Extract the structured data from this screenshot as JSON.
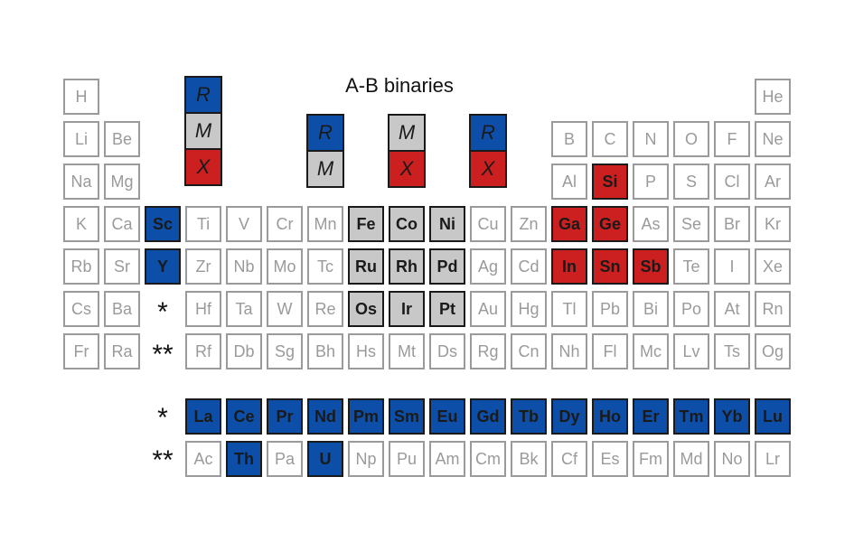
{
  "title": "A-B binaries",
  "colors": {
    "R": "#0d4fa8",
    "M": "#c8c8c8",
    "X": "#cc1f1f",
    "plain": "#9a9a9a"
  },
  "markers": {
    "lanthanide": "*",
    "actinide": "**"
  },
  "key_groups": [
    [
      "R",
      "M",
      "X"
    ],
    [
      "R",
      "M"
    ],
    [
      "M",
      "X"
    ],
    [
      "R",
      "X"
    ]
  ],
  "elements": [
    {
      "symbol": "H",
      "row": 1,
      "col": 1,
      "role": "plain"
    },
    {
      "symbol": "He",
      "row": 1,
      "col": 18,
      "role": "plain"
    },
    {
      "symbol": "Li",
      "row": 2,
      "col": 1,
      "role": "plain"
    },
    {
      "symbol": "Be",
      "row": 2,
      "col": 2,
      "role": "plain"
    },
    {
      "symbol": "B",
      "row": 2,
      "col": 13,
      "role": "plain"
    },
    {
      "symbol": "C",
      "row": 2,
      "col": 14,
      "role": "plain"
    },
    {
      "symbol": "N",
      "row": 2,
      "col": 15,
      "role": "plain"
    },
    {
      "symbol": "O",
      "row": 2,
      "col": 16,
      "role": "plain"
    },
    {
      "symbol": "F",
      "row": 2,
      "col": 17,
      "role": "plain"
    },
    {
      "symbol": "Ne",
      "row": 2,
      "col": 18,
      "role": "plain"
    },
    {
      "symbol": "Na",
      "row": 3,
      "col": 1,
      "role": "plain"
    },
    {
      "symbol": "Mg",
      "row": 3,
      "col": 2,
      "role": "plain"
    },
    {
      "symbol": "Al",
      "row": 3,
      "col": 13,
      "role": "plain"
    },
    {
      "symbol": "Si",
      "row": 3,
      "col": 14,
      "role": "X"
    },
    {
      "symbol": "P",
      "row": 3,
      "col": 15,
      "role": "plain"
    },
    {
      "symbol": "S",
      "row": 3,
      "col": 16,
      "role": "plain"
    },
    {
      "symbol": "Cl",
      "row": 3,
      "col": 17,
      "role": "plain"
    },
    {
      "symbol": "Ar",
      "row": 3,
      "col": 18,
      "role": "plain"
    },
    {
      "symbol": "K",
      "row": 4,
      "col": 1,
      "role": "plain"
    },
    {
      "symbol": "Ca",
      "row": 4,
      "col": 2,
      "role": "plain"
    },
    {
      "symbol": "Sc",
      "row": 4,
      "col": 3,
      "role": "R"
    },
    {
      "symbol": "Ti",
      "row": 4,
      "col": 4,
      "role": "plain"
    },
    {
      "symbol": "V",
      "row": 4,
      "col": 5,
      "role": "plain"
    },
    {
      "symbol": "Cr",
      "row": 4,
      "col": 6,
      "role": "plain"
    },
    {
      "symbol": "Mn",
      "row": 4,
      "col": 7,
      "role": "plain"
    },
    {
      "symbol": "Fe",
      "row": 4,
      "col": 8,
      "role": "M"
    },
    {
      "symbol": "Co",
      "row": 4,
      "col": 9,
      "role": "M"
    },
    {
      "symbol": "Ni",
      "row": 4,
      "col": 10,
      "role": "M"
    },
    {
      "symbol": "Cu",
      "row": 4,
      "col": 11,
      "role": "plain"
    },
    {
      "symbol": "Zn",
      "row": 4,
      "col": 12,
      "role": "plain"
    },
    {
      "symbol": "Ga",
      "row": 4,
      "col": 13,
      "role": "X"
    },
    {
      "symbol": "Ge",
      "row": 4,
      "col": 14,
      "role": "X"
    },
    {
      "symbol": "As",
      "row": 4,
      "col": 15,
      "role": "plain"
    },
    {
      "symbol": "Se",
      "row": 4,
      "col": 16,
      "role": "plain"
    },
    {
      "symbol": "Br",
      "row": 4,
      "col": 17,
      "role": "plain"
    },
    {
      "symbol": "Kr",
      "row": 4,
      "col": 18,
      "role": "plain"
    },
    {
      "symbol": "Rb",
      "row": 5,
      "col": 1,
      "role": "plain"
    },
    {
      "symbol": "Sr",
      "row": 5,
      "col": 2,
      "role": "plain"
    },
    {
      "symbol": "Y",
      "row": 5,
      "col": 3,
      "role": "R"
    },
    {
      "symbol": "Zr",
      "row": 5,
      "col": 4,
      "role": "plain"
    },
    {
      "symbol": "Nb",
      "row": 5,
      "col": 5,
      "role": "plain"
    },
    {
      "symbol": "Mo",
      "row": 5,
      "col": 6,
      "role": "plain"
    },
    {
      "symbol": "Tc",
      "row": 5,
      "col": 7,
      "role": "plain"
    },
    {
      "symbol": "Ru",
      "row": 5,
      "col": 8,
      "role": "M"
    },
    {
      "symbol": "Rh",
      "row": 5,
      "col": 9,
      "role": "M"
    },
    {
      "symbol": "Pd",
      "row": 5,
      "col": 10,
      "role": "M"
    },
    {
      "symbol": "Ag",
      "row": 5,
      "col": 11,
      "role": "plain"
    },
    {
      "symbol": "Cd",
      "row": 5,
      "col": 12,
      "role": "plain"
    },
    {
      "symbol": "In",
      "row": 5,
      "col": 13,
      "role": "X"
    },
    {
      "symbol": "Sn",
      "row": 5,
      "col": 14,
      "role": "X"
    },
    {
      "symbol": "Sb",
      "row": 5,
      "col": 15,
      "role": "X"
    },
    {
      "symbol": "Te",
      "row": 5,
      "col": 16,
      "role": "plain"
    },
    {
      "symbol": "I",
      "row": 5,
      "col": 17,
      "role": "plain"
    },
    {
      "symbol": "Xe",
      "row": 5,
      "col": 18,
      "role": "plain"
    },
    {
      "symbol": "Cs",
      "row": 6,
      "col": 1,
      "role": "plain"
    },
    {
      "symbol": "Ba",
      "row": 6,
      "col": 2,
      "role": "plain"
    },
    {
      "symbol": "Hf",
      "row": 6,
      "col": 4,
      "role": "plain"
    },
    {
      "symbol": "Ta",
      "row": 6,
      "col": 5,
      "role": "plain"
    },
    {
      "symbol": "W",
      "row": 6,
      "col": 6,
      "role": "plain"
    },
    {
      "symbol": "Re",
      "row": 6,
      "col": 7,
      "role": "plain"
    },
    {
      "symbol": "Os",
      "row": 6,
      "col": 8,
      "role": "M"
    },
    {
      "symbol": "Ir",
      "row": 6,
      "col": 9,
      "role": "M"
    },
    {
      "symbol": "Pt",
      "row": 6,
      "col": 10,
      "role": "M"
    },
    {
      "symbol": "Au",
      "row": 6,
      "col": 11,
      "role": "plain"
    },
    {
      "symbol": "Hg",
      "row": 6,
      "col": 12,
      "role": "plain"
    },
    {
      "symbol": "Tl",
      "row": 6,
      "col": 13,
      "role": "plain"
    },
    {
      "symbol": "Pb",
      "row": 6,
      "col": 14,
      "role": "plain"
    },
    {
      "symbol": "Bi",
      "row": 6,
      "col": 15,
      "role": "plain"
    },
    {
      "symbol": "Po",
      "row": 6,
      "col": 16,
      "role": "plain"
    },
    {
      "symbol": "At",
      "row": 6,
      "col": 17,
      "role": "plain"
    },
    {
      "symbol": "Rn",
      "row": 6,
      "col": 18,
      "role": "plain"
    },
    {
      "symbol": "Fr",
      "row": 7,
      "col": 1,
      "role": "plain"
    },
    {
      "symbol": "Ra",
      "row": 7,
      "col": 2,
      "role": "plain"
    },
    {
      "symbol": "Rf",
      "row": 7,
      "col": 4,
      "role": "plain"
    },
    {
      "symbol": "Db",
      "row": 7,
      "col": 5,
      "role": "plain"
    },
    {
      "symbol": "Sg",
      "row": 7,
      "col": 6,
      "role": "plain"
    },
    {
      "symbol": "Bh",
      "row": 7,
      "col": 7,
      "role": "plain"
    },
    {
      "symbol": "Hs",
      "row": 7,
      "col": 8,
      "role": "plain"
    },
    {
      "symbol": "Mt",
      "row": 7,
      "col": 9,
      "role": "plain"
    },
    {
      "symbol": "Ds",
      "row": 7,
      "col": 10,
      "role": "plain"
    },
    {
      "symbol": "Rg",
      "row": 7,
      "col": 11,
      "role": "plain"
    },
    {
      "symbol": "Cn",
      "row": 7,
      "col": 12,
      "role": "plain"
    },
    {
      "symbol": "Nh",
      "row": 7,
      "col": 13,
      "role": "plain"
    },
    {
      "symbol": "Fl",
      "row": 7,
      "col": 14,
      "role": "plain"
    },
    {
      "symbol": "Mc",
      "row": 7,
      "col": 15,
      "role": "plain"
    },
    {
      "symbol": "Lv",
      "row": 7,
      "col": 16,
      "role": "plain"
    },
    {
      "symbol": "Ts",
      "row": 7,
      "col": 17,
      "role": "plain"
    },
    {
      "symbol": "Og",
      "row": 7,
      "col": 18,
      "role": "plain"
    },
    {
      "symbol": "La",
      "row": 9,
      "col": 4,
      "role": "R"
    },
    {
      "symbol": "Ce",
      "row": 9,
      "col": 5,
      "role": "R"
    },
    {
      "symbol": "Pr",
      "row": 9,
      "col": 6,
      "role": "R"
    },
    {
      "symbol": "Nd",
      "row": 9,
      "col": 7,
      "role": "R"
    },
    {
      "symbol": "Pm",
      "row": 9,
      "col": 8,
      "role": "R"
    },
    {
      "symbol": "Sm",
      "row": 9,
      "col": 9,
      "role": "R"
    },
    {
      "symbol": "Eu",
      "row": 9,
      "col": 10,
      "role": "R"
    },
    {
      "symbol": "Gd",
      "row": 9,
      "col": 11,
      "role": "R"
    },
    {
      "symbol": "Tb",
      "row": 9,
      "col": 12,
      "role": "R"
    },
    {
      "symbol": "Dy",
      "row": 9,
      "col": 13,
      "role": "R"
    },
    {
      "symbol": "Ho",
      "row": 9,
      "col": 14,
      "role": "R"
    },
    {
      "symbol": "Er",
      "row": 9,
      "col": 15,
      "role": "R"
    },
    {
      "symbol": "Tm",
      "row": 9,
      "col": 16,
      "role": "R"
    },
    {
      "symbol": "Yb",
      "row": 9,
      "col": 17,
      "role": "R"
    },
    {
      "symbol": "Lu",
      "row": 9,
      "col": 18,
      "role": "R"
    },
    {
      "symbol": "Ac",
      "row": 10,
      "col": 4,
      "role": "plain"
    },
    {
      "symbol": "Th",
      "row": 10,
      "col": 5,
      "role": "R"
    },
    {
      "symbol": "Pa",
      "row": 10,
      "col": 6,
      "role": "plain"
    },
    {
      "symbol": "U",
      "row": 10,
      "col": 7,
      "role": "R"
    },
    {
      "symbol": "Np",
      "row": 10,
      "col": 8,
      "role": "plain"
    },
    {
      "symbol": "Pu",
      "row": 10,
      "col": 9,
      "role": "plain"
    },
    {
      "symbol": "Am",
      "row": 10,
      "col": 10,
      "role": "plain"
    },
    {
      "symbol": "Cm",
      "row": 10,
      "col": 11,
      "role": "plain"
    },
    {
      "symbol": "Bk",
      "row": 10,
      "col": 12,
      "role": "plain"
    },
    {
      "symbol": "Cf",
      "row": 10,
      "col": 13,
      "role": "plain"
    },
    {
      "symbol": "Es",
      "row": 10,
      "col": 14,
      "role": "plain"
    },
    {
      "symbol": "Fm",
      "row": 10,
      "col": 15,
      "role": "plain"
    },
    {
      "symbol": "Md",
      "row": 10,
      "col": 16,
      "role": "plain"
    },
    {
      "symbol": "No",
      "row": 10,
      "col": 17,
      "role": "plain"
    },
    {
      "symbol": "Lr",
      "row": 10,
      "col": 18,
      "role": "plain"
    }
  ]
}
